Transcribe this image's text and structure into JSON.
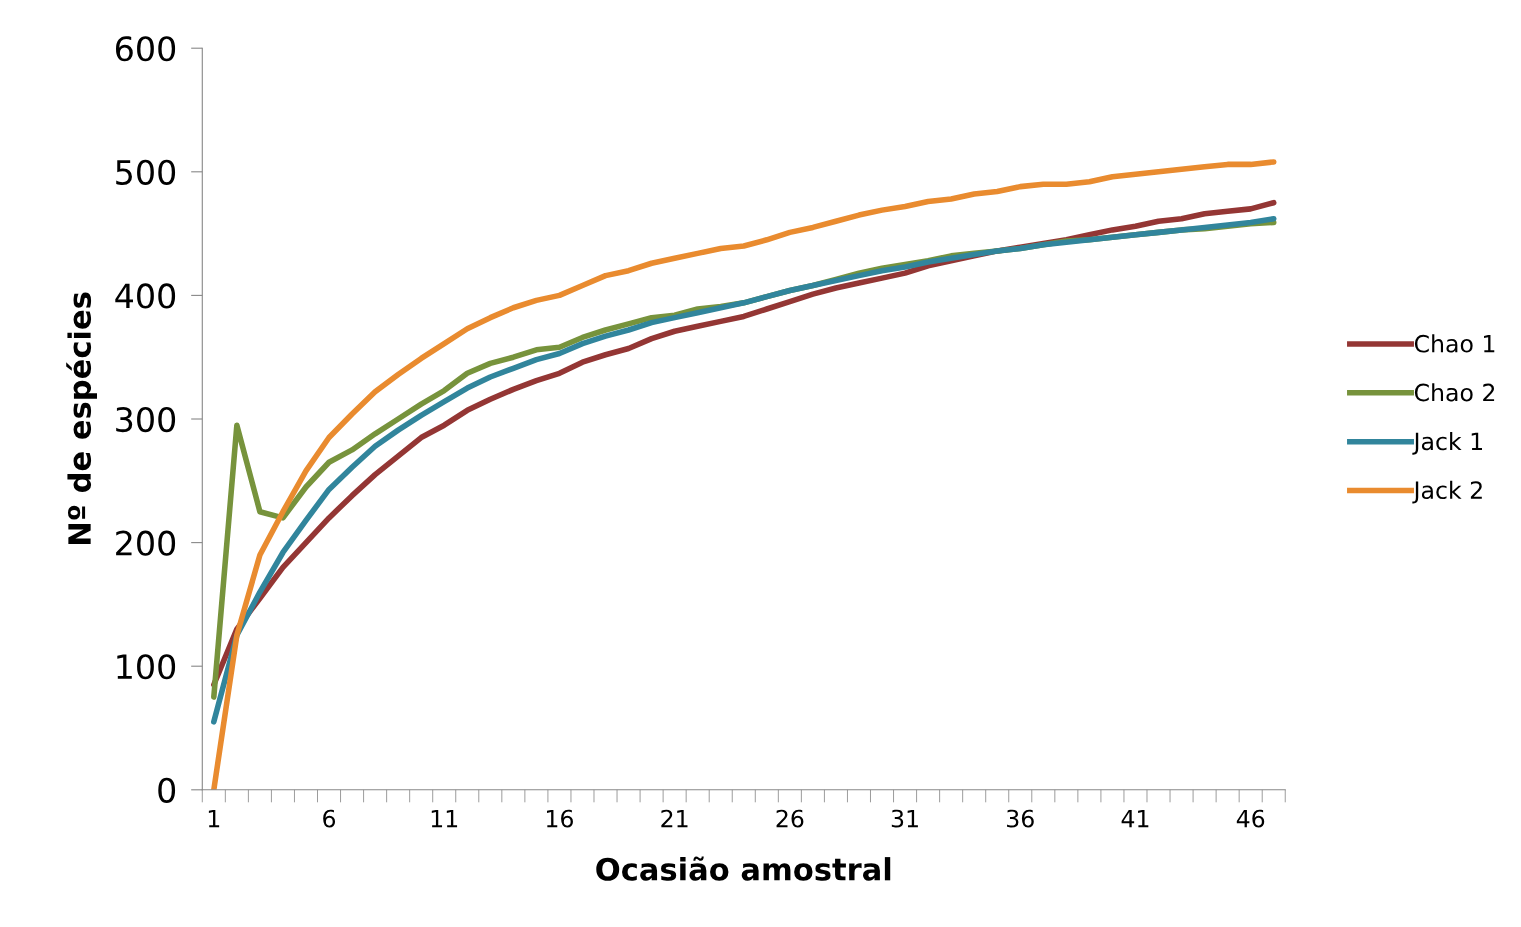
{
  "chart_data": {
    "type": "line",
    "xlabel": "Ocasião amostral",
    "ylabel": "Nº de espécies",
    "categories": [
      "1",
      null,
      null,
      null,
      null,
      "6",
      null,
      null,
      null,
      null,
      "11",
      null,
      null,
      null,
      null,
      "16",
      null,
      null,
      null,
      null,
      "21",
      null,
      null,
      null,
      null,
      "26",
      null,
      null,
      null,
      null,
      "31",
      null,
      null,
      null,
      null,
      "36",
      null,
      null,
      null,
      null,
      "41",
      null,
      null,
      null,
      null,
      "46",
      null
    ],
    "ylim": [
      0,
      600
    ],
    "yticks": [
      0,
      100,
      200,
      300,
      400,
      500,
      600
    ],
    "grid": false,
    "legend": "right",
    "marker": "none",
    "line_style": "solid",
    "series": [
      {
        "name": "Chao 1",
        "color": "#943634",
        "values": [
          85,
          130,
          155,
          180,
          200,
          220,
          238,
          255,
          270,
          285,
          295,
          307,
          316,
          324,
          331,
          337,
          346,
          352,
          357,
          365,
          371,
          375,
          379,
          383,
          389,
          395,
          401,
          406,
          410,
          414,
          418,
          424,
          428,
          432,
          436,
          439,
          442,
          445,
          449,
          453,
          456,
          460,
          462,
          466,
          468,
          470,
          475
        ]
      },
      {
        "name": "Chao 2",
        "color": "#77933c",
        "values": [
          75,
          295,
          225,
          220,
          245,
          265,
          275,
          288,
          300,
          312,
          323,
          337,
          345,
          350,
          356,
          358,
          366,
          372,
          377,
          382,
          384,
          389,
          391,
          394,
          399,
          404,
          408,
          413,
          418,
          422,
          425,
          428,
          432,
          434,
          436,
          438,
          441,
          444,
          445,
          447,
          449,
          451,
          453,
          454,
          456,
          458,
          459
        ]
      },
      {
        "name": "Jack 1",
        "color": "#31859c",
        "values": [
          55,
          125,
          160,
          192,
          218,
          243,
          261,
          278,
          291,
          303,
          314,
          325,
          334,
          341,
          348,
          353,
          361,
          367,
          372,
          378,
          382,
          386,
          390,
          394,
          399,
          404,
          408,
          412,
          416,
          420,
          423,
          427,
          430,
          433,
          436,
          438,
          441,
          443,
          445,
          447,
          449,
          451,
          453,
          455,
          457,
          459,
          462
        ]
      },
      {
        "name": "Jack 2",
        "color": "#e98b2f",
        "values": [
          0,
          125,
          190,
          225,
          258,
          285,
          304,
          322,
          336,
          349,
          361,
          373,
          382,
          390,
          396,
          400,
          408,
          416,
          420,
          426,
          430,
          434,
          438,
          440,
          445,
          451,
          455,
          460,
          465,
          469,
          472,
          476,
          478,
          482,
          484,
          488,
          490,
          490,
          492,
          496,
          498,
          500,
          502,
          504,
          506,
          506,
          508
        ]
      }
    ]
  }
}
